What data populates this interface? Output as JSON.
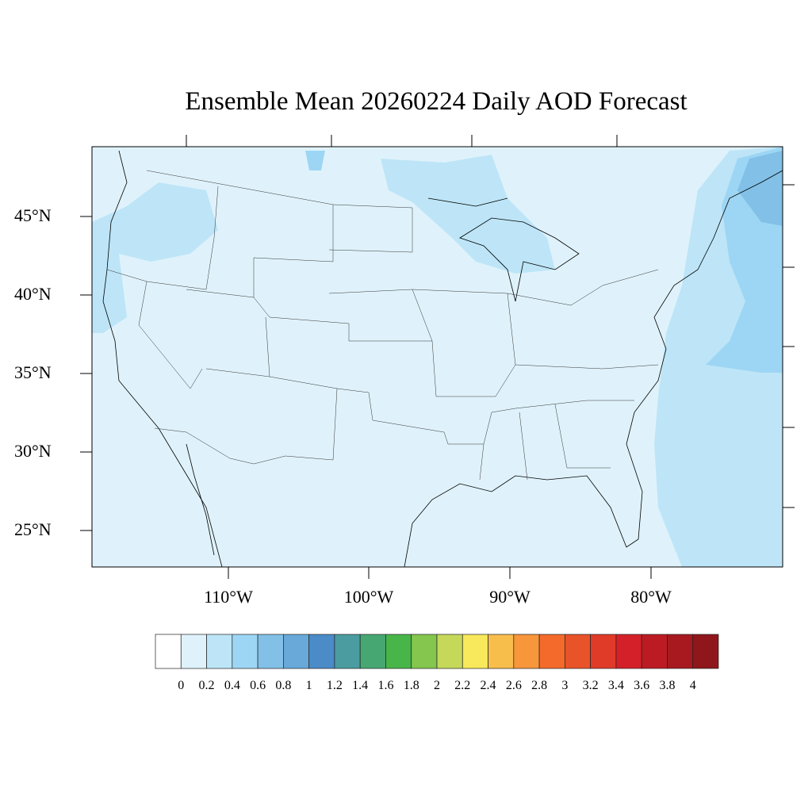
{
  "title": "Ensemble Mean 20260224 Daily AOD Forecast",
  "map": {
    "region": "Contiguous United States",
    "lat_labels": [
      "45°N",
      "40°N",
      "35°N",
      "30°N",
      "25°N"
    ],
    "lon_labels": [
      "110°W",
      "100°W",
      "90°W",
      "80°W"
    ],
    "background_color": "#dff2fb",
    "field_colors": {
      "low": "#dff2fb",
      "mid": "#bde5f7",
      "high": "#9dd6f4",
      "highest": "#82c0e7"
    }
  },
  "colorbar": {
    "labels": [
      "0",
      "0.2",
      "0.4",
      "0.6",
      "0.8",
      "1",
      "1.2",
      "1.4",
      "1.6",
      "1.8",
      "2",
      "2.2",
      "2.4",
      "2.6",
      "2.8",
      "3",
      "3.2",
      "3.4",
      "3.6",
      "3.8",
      "4"
    ],
    "colors": [
      "#ffffff",
      "#dff2fb",
      "#bde5f7",
      "#9dd6f4",
      "#82c0e7",
      "#68a9da",
      "#4a8bc8",
      "#4a9ca0",
      "#47a773",
      "#48b549",
      "#84c64e",
      "#c5d85a",
      "#f8e85b",
      "#f8be4c",
      "#f7963b",
      "#f46a2b",
      "#e9532a",
      "#e03a29",
      "#d42029",
      "#bd1b23",
      "#a7191f",
      "#8f161b"
    ]
  }
}
